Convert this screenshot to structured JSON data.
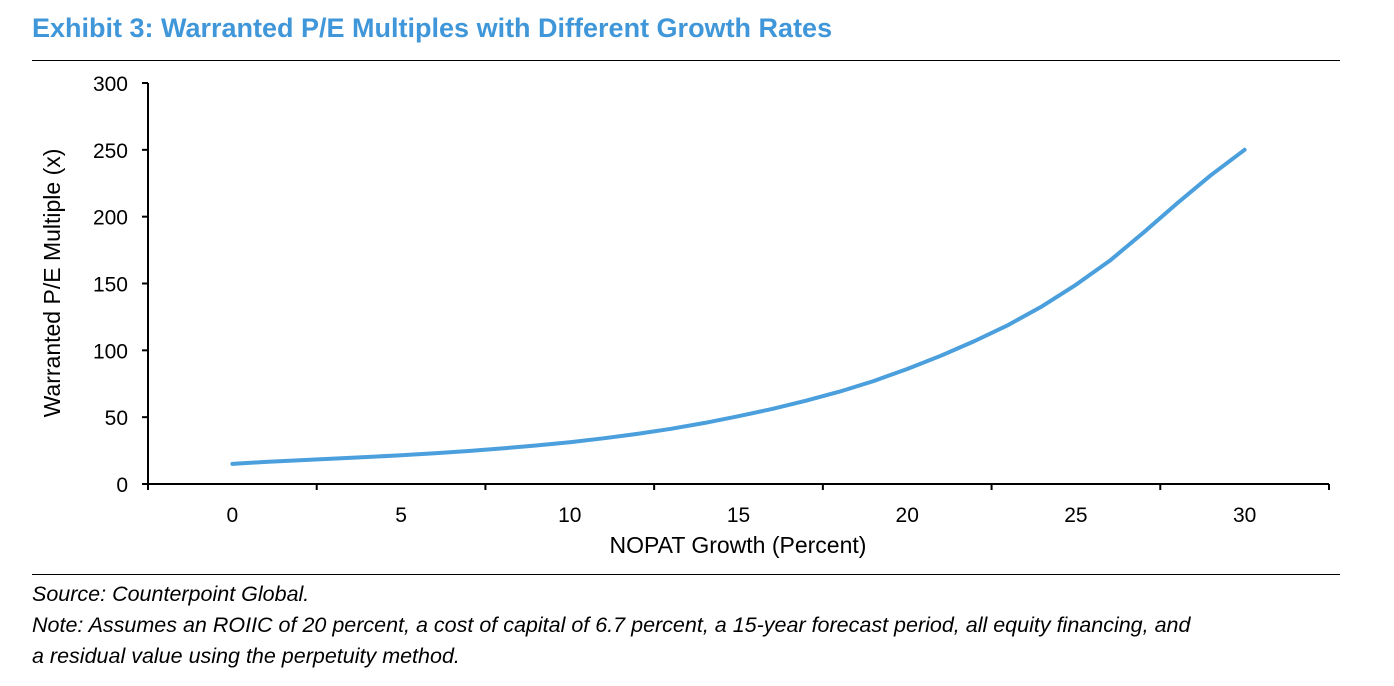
{
  "title": "Exhibit 3: Warranted P/E Multiples with Different Growth Rates",
  "notes": {
    "source": "Source: Counterpoint Global.",
    "note_line1": "Note: Assumes an ROIIC of 20 percent, a cost of capital of 6.7 percent, a 15-year forecast period, all equity financing, and",
    "note_line2": "a residual value using the perpetuity method."
  },
  "chart_data": {
    "type": "line",
    "title": "Exhibit 3: Warranted P/E Multiples with Different Growth Rates",
    "xlabel": "NOPAT Growth (Percent)",
    "ylabel": "Warranted P/E Multiple (x)",
    "xlim": [
      -2.5,
      32.5
    ],
    "ylim": [
      0,
      300
    ],
    "x_ticks": [
      0,
      5,
      10,
      15,
      20,
      25,
      30
    ],
    "y_ticks": [
      0,
      50,
      100,
      150,
      200,
      250,
      300
    ],
    "grid": false,
    "line_color": "#4a9fdc",
    "series": [
      {
        "x": [
          0,
          1,
          2,
          3,
          4,
          5,
          6,
          7,
          8,
          9,
          10,
          11,
          12,
          13,
          14,
          15,
          16,
          17,
          18,
          19,
          20,
          21,
          22,
          23,
          24,
          25,
          26,
          27,
          28,
          29,
          30
        ],
        "values": [
          15,
          16.5,
          17.8,
          19,
          20.2,
          21.5,
          23,
          24.7,
          26.6,
          28.8,
          31.3,
          34.2,
          37.5,
          41.3,
          45.7,
          50.7,
          56.2,
          62.3,
          69.1,
          77,
          86,
          96,
          107,
          119,
          133,
          149,
          167,
          188,
          210,
          231,
          250
        ]
      }
    ]
  }
}
